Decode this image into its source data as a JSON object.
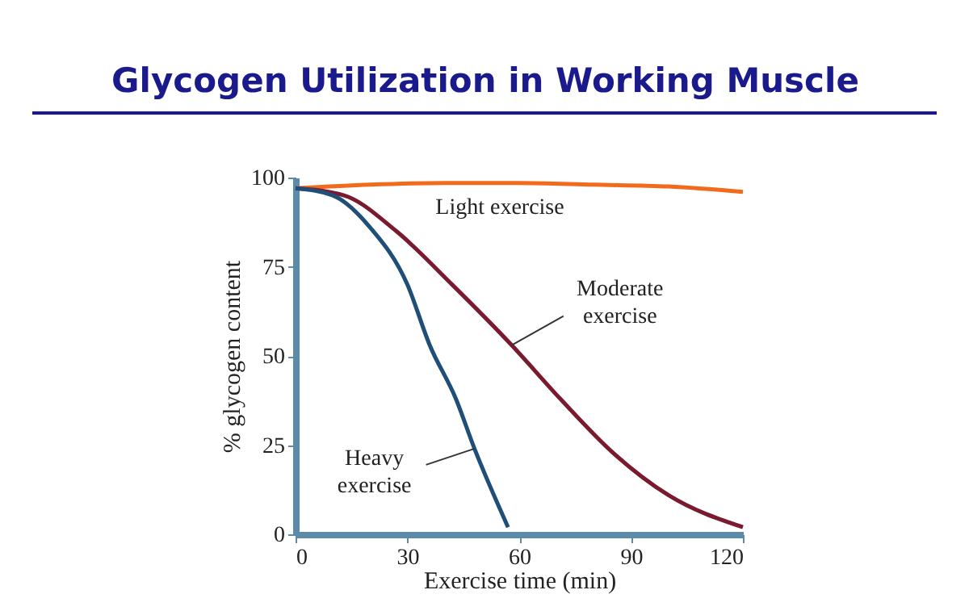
{
  "chart_data": {
    "type": "line",
    "title": "Glycogen Utilization in Working Muscle",
    "xlabel": "Exercise time (min)",
    "ylabel": "% glycogen content",
    "xlim": [
      0,
      120
    ],
    "xticks": [
      0,
      30,
      60,
      90,
      120
    ],
    "ylim": [
      0,
      100
    ],
    "yticks": [
      0,
      25,
      50,
      75,
      100
    ],
    "grid": false,
    "legend": false,
    "marker": "none",
    "line_style": "solid",
    "series": [
      {
        "name": "Light exercise",
        "color": "#f26a1b",
        "x": [
          0,
          20,
          40,
          60,
          80,
          100,
          120
        ],
        "values": [
          97,
          98,
          98.5,
          98.5,
          98,
          97.5,
          96
        ]
      },
      {
        "name": "Moderate exercise",
        "color": "#7a1a2e",
        "x": [
          0,
          13,
          27,
          42,
          58,
          71,
          85,
          100,
          120
        ],
        "values": [
          97,
          95,
          85,
          70,
          53,
          38,
          23,
          11,
          2
        ]
      },
      {
        "name": "Heavy exercise",
        "color": "#1f4e79",
        "x": [
          0,
          10,
          20,
          30,
          36,
          43,
          48,
          57
        ],
        "values": [
          97,
          95,
          86,
          70,
          53,
          38,
          24,
          2
        ]
      }
    ]
  }
}
